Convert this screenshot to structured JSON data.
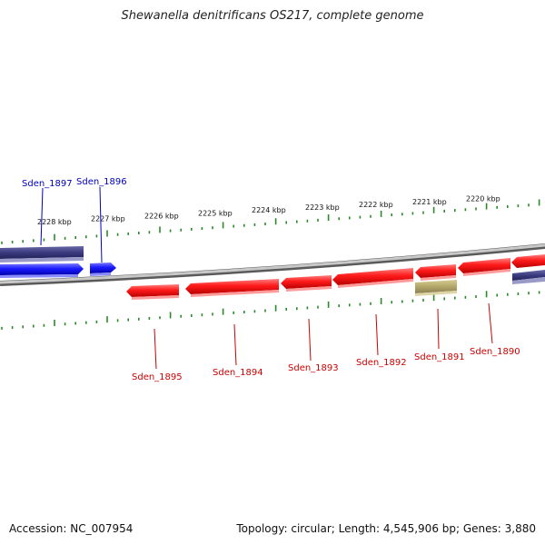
{
  "title": "Shewanella denitrificans OS217, complete genome",
  "accession_label": "Accession: NC_007954",
  "summary_label": "Topology: circular; Length: 4,545,906 bp; Genes: 3,880",
  "colors": {
    "forward_gene": "#1a1aff",
    "reverse_gene": "#ff1a1a",
    "forward_label": "#0000bb",
    "reverse_label": "#cc0000",
    "ruler_ticks": "#2a8a2a",
    "backbone": "#8c8c8c",
    "navy_feature": "#3a3a80",
    "khaki_feature": "#b3a86a"
  },
  "ruler": {
    "labels": [
      "2228 kbp",
      "2227 kbp",
      "2226 kbp",
      "2225 kbp",
      "2224 kbp",
      "2223 kbp",
      "2222 kbp",
      "2221 kbp",
      "2220 kbp"
    ]
  },
  "genes": {
    "forward": [
      "Sden_1897",
      "Sden_1896"
    ],
    "reverse": [
      "Sden_1895",
      "Sden_1894",
      "Sden_1893",
      "Sden_1892",
      "Sden_1891",
      "Sden_1890"
    ]
  }
}
